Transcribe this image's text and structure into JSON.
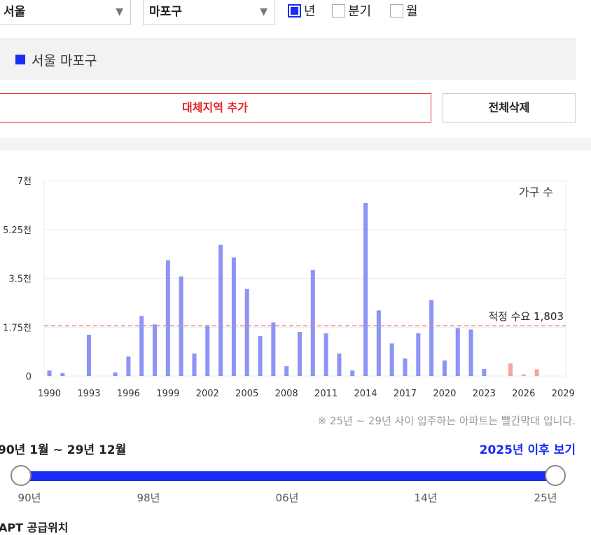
{
  "filters": {
    "city": "서울",
    "district": "마포구",
    "arrow": "▼",
    "period_options": [
      {
        "label": "년",
        "checked": true
      },
      {
        "label": "분기",
        "checked": false
      },
      {
        "label": "월",
        "checked": false
      }
    ]
  },
  "selected_region": {
    "label": "서울 마포구",
    "color": "#1a2cf5"
  },
  "buttons": {
    "add_alt_region": "대체지역 추가",
    "delete_all": "전체삭제"
  },
  "chart_data": {
    "type": "bar",
    "unit_label": "가구 수",
    "x": [
      1990,
      1991,
      1992,
      1993,
      1994,
      1995,
      1996,
      1997,
      1998,
      1999,
      2000,
      2001,
      2002,
      2003,
      2004,
      2005,
      2006,
      2007,
      2008,
      2009,
      2010,
      2011,
      2012,
      2013,
      2014,
      2015,
      2016,
      2017,
      2018,
      2019,
      2020,
      2021,
      2022,
      2023,
      2024,
      2025,
      2026,
      2027
    ],
    "values": [
      200,
      100,
      0,
      1480,
      0,
      130,
      700,
      2150,
      1850,
      4150,
      3570,
      810,
      1800,
      4700,
      4250,
      3120,
      1430,
      1920,
      350,
      1580,
      3800,
      1530,
      810,
      200,
      6200,
      2350,
      1170,
      630,
      1530,
      2720,
      560,
      1720,
      1670,
      250,
      0,
      450,
      60,
      240
    ],
    "future_from": 2025,
    "bar_color": "#8c94f5",
    "future_bar_color": "#f5a3a3",
    "x_ticks": [
      "1990",
      "1993",
      "1996",
      "1999",
      "2002",
      "2005",
      "2008",
      "2011",
      "2014",
      "2017",
      "2020",
      "2023",
      "2026",
      "2029"
    ],
    "y_ticks": [
      {
        "value": 0,
        "label": "0"
      },
      {
        "value": 1750,
        "label": "1.75천"
      },
      {
        "value": 3500,
        "label": "3.5천"
      },
      {
        "value": 5250,
        "label": "5.25천"
      },
      {
        "value": 7000,
        "label": "7천"
      }
    ],
    "ylim": [
      0,
      7000
    ],
    "xlim": [
      1989.6,
      2029.2
    ],
    "reference_line": {
      "value": 1803,
      "label": "적정 수요 1,803",
      "color": "#f08a8a"
    }
  },
  "chart_note": "※ 25년 ~ 29년 사이 입주하는 아파트는 빨간막대 입니다.",
  "range": {
    "label": "90년 1월 ~ 29년 12월",
    "future_link": "2025년 이후 보기"
  },
  "slider_ticks": [
    "90년",
    "98년",
    "06년",
    "14년",
    "25년"
  ],
  "apt_section_title": "APT 공급위치"
}
